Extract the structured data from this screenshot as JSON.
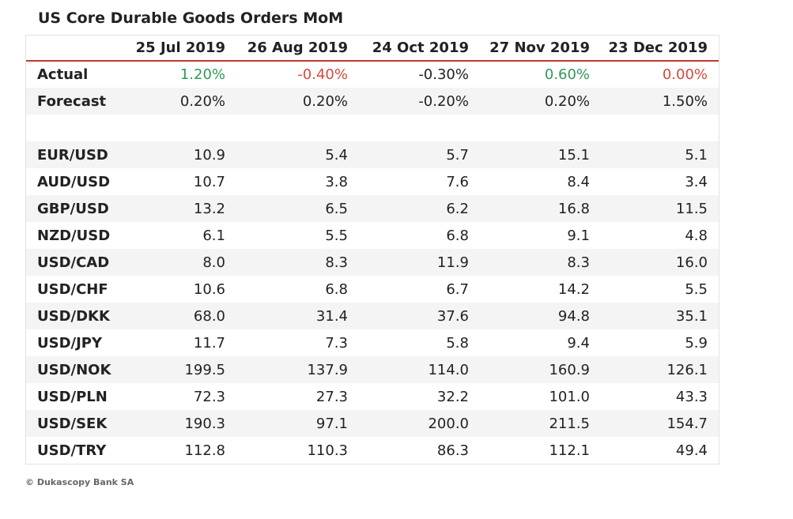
{
  "chart_data": {
    "type": "table",
    "title": "US Core Durable Goods Orders MoM",
    "columns": [
      "25 Jul 2019",
      "26 Aug 2019",
      "24 Oct 2019",
      "27 Nov 2019",
      "23 Dec 2019"
    ],
    "rows": [
      {
        "label": "Actual",
        "cells": [
          {
            "text": "1.20%",
            "tone": "pos"
          },
          {
            "text": "-0.40%",
            "tone": "neg"
          },
          {
            "text": "-0.30%",
            "tone": ""
          },
          {
            "text": "0.60%",
            "tone": "pos"
          },
          {
            "text": "0.00%",
            "tone": "neg"
          }
        ]
      },
      {
        "label": "Forecast",
        "cells": [
          {
            "text": "0.20%"
          },
          {
            "text": "0.20%"
          },
          {
            "text": "-0.20%"
          },
          {
            "text": "0.20%"
          },
          {
            "text": "1.50%"
          }
        ]
      },
      {
        "label": "",
        "cells": [
          {
            "text": ""
          },
          {
            "text": ""
          },
          {
            "text": ""
          },
          {
            "text": ""
          },
          {
            "text": ""
          }
        ]
      },
      {
        "label": "EUR/USD",
        "cells": [
          {
            "text": "10.9"
          },
          {
            "text": "5.4"
          },
          {
            "text": "5.7"
          },
          {
            "text": "15.1"
          },
          {
            "text": "5.1"
          }
        ]
      },
      {
        "label": "AUD/USD",
        "cells": [
          {
            "text": "10.7"
          },
          {
            "text": "3.8"
          },
          {
            "text": "7.6"
          },
          {
            "text": "8.4"
          },
          {
            "text": "3.4"
          }
        ]
      },
      {
        "label": "GBP/USD",
        "cells": [
          {
            "text": "13.2"
          },
          {
            "text": "6.5"
          },
          {
            "text": "6.2"
          },
          {
            "text": "16.8"
          },
          {
            "text": "11.5"
          }
        ]
      },
      {
        "label": "NZD/USD",
        "cells": [
          {
            "text": "6.1"
          },
          {
            "text": "5.5"
          },
          {
            "text": "6.8"
          },
          {
            "text": "9.1"
          },
          {
            "text": "4.8"
          }
        ]
      },
      {
        "label": "USD/CAD",
        "cells": [
          {
            "text": "8.0"
          },
          {
            "text": "8.3"
          },
          {
            "text": "11.9"
          },
          {
            "text": "8.3"
          },
          {
            "text": "16.0"
          }
        ]
      },
      {
        "label": "USD/CHF",
        "cells": [
          {
            "text": "10.6"
          },
          {
            "text": "6.8"
          },
          {
            "text": "6.7"
          },
          {
            "text": "14.2"
          },
          {
            "text": "5.5"
          }
        ]
      },
      {
        "label": "USD/DKK",
        "cells": [
          {
            "text": "68.0"
          },
          {
            "text": "31.4"
          },
          {
            "text": "37.6"
          },
          {
            "text": "94.8"
          },
          {
            "text": "35.1"
          }
        ]
      },
      {
        "label": "USD/JPY",
        "cells": [
          {
            "text": "11.7"
          },
          {
            "text": "7.3"
          },
          {
            "text": "5.8"
          },
          {
            "text": "9.4"
          },
          {
            "text": "5.9"
          }
        ]
      },
      {
        "label": "USD/NOK",
        "cells": [
          {
            "text": "199.5"
          },
          {
            "text": "137.9"
          },
          {
            "text": "114.0"
          },
          {
            "text": "160.9"
          },
          {
            "text": "126.1"
          }
        ]
      },
      {
        "label": "USD/PLN",
        "cells": [
          {
            "text": "72.3"
          },
          {
            "text": "27.3"
          },
          {
            "text": "32.2"
          },
          {
            "text": "101.0"
          },
          {
            "text": "43.3"
          }
        ]
      },
      {
        "label": "USD/SEK",
        "cells": [
          {
            "text": "190.3"
          },
          {
            "text": "97.1"
          },
          {
            "text": "200.0"
          },
          {
            "text": "211.5"
          },
          {
            "text": "154.7"
          }
        ]
      },
      {
        "label": "USD/TRY",
        "cells": [
          {
            "text": "112.8"
          },
          {
            "text": "110.3"
          },
          {
            "text": "86.3"
          },
          {
            "text": "112.1"
          },
          {
            "text": "49.4"
          }
        ]
      }
    ]
  },
  "footer": {
    "credit": "© Dukascopy Bank SA"
  },
  "colors": {
    "positive": "#2e9a5a",
    "negative": "#d24b3f",
    "header_rule": "#c0392b",
    "stripe": "#f4f4f4"
  }
}
